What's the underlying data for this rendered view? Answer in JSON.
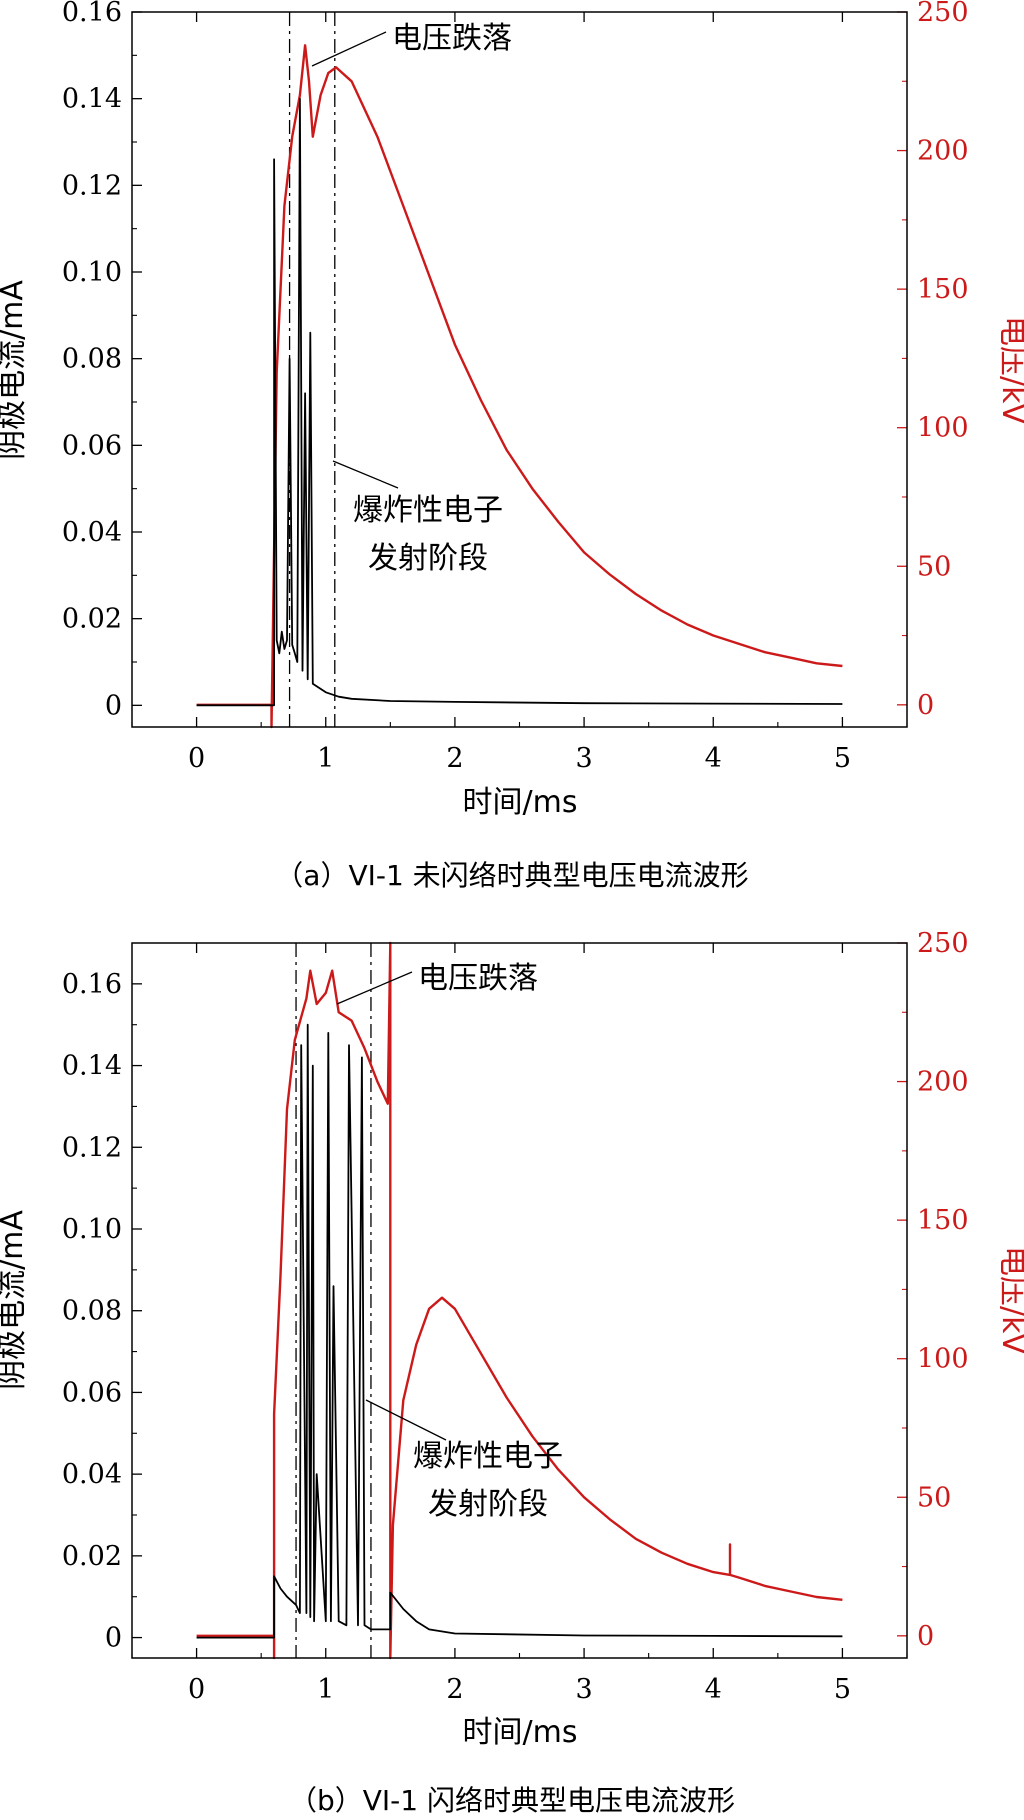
{
  "colors": {
    "current": "#000000",
    "voltage": "#cc1a1a",
    "background": "#ffffff"
  },
  "chart_data": [
    {
      "type": "line",
      "caption": "（a）VI-1 未闪络时典型电压电流波形",
      "xlabel": "时间/ms",
      "ylabel_left": "阴极电流/mA",
      "ylabel_right": "电压/kV",
      "xlim": [
        -0.5,
        5.5
      ],
      "ylim_left": [
        -0.005,
        0.16
      ],
      "ylim_right": [
        -8,
        250
      ],
      "xticks": [
        0,
        1,
        2,
        3,
        4,
        5
      ],
      "yticks_left": [
        "0",
        "0.02",
        "0.04",
        "0.06",
        "0.08",
        "0.10",
        "0.12",
        "0.14",
        "0.16"
      ],
      "yticks_right": [
        "0",
        "50",
        "100",
        "150",
        "200",
        "250"
      ],
      "annotations": [
        {
          "text": "电压跌落"
        },
        {
          "lines": [
            "爆炸性电子",
            "发射阶段"
          ]
        }
      ],
      "markers_x": [
        0.72,
        1.07
      ],
      "series": [
        {
          "axis": "right",
          "color": "#cc1a1a",
          "x": [
            0,
            0.58,
            0.58,
            0.62,
            0.68,
            0.74,
            0.8,
            0.84,
            0.87,
            0.9,
            0.96,
            1.02,
            1.08,
            1.2,
            1.4,
            1.6,
            1.8,
            2.0,
            2.2,
            2.4,
            2.6,
            2.8,
            3.0,
            3.2,
            3.4,
            3.6,
            3.8,
            4.0,
            4.2,
            4.4,
            4.6,
            4.8,
            5.0
          ],
          "y": [
            0,
            0,
            -8,
            120,
            180,
            205,
            220,
            238,
            225,
            205,
            220,
            228,
            230,
            225,
            205,
            180,
            155,
            130,
            110,
            92,
            78,
            66,
            55,
            47,
            40,
            34,
            29,
            25,
            22,
            19,
            17,
            15,
            14
          ]
        },
        {
          "axis": "left",
          "color": "#000000",
          "x": [
            0,
            0.6,
            0.6,
            0.62,
            0.64,
            0.66,
            0.68,
            0.7,
            0.72,
            0.74,
            0.76,
            0.78,
            0.8,
            0.82,
            0.84,
            0.86,
            0.88,
            0.9,
            0.95,
            1.0,
            1.1,
            1.2,
            1.5,
            2.0,
            3.0,
            4.0,
            5.0
          ],
          "y": [
            0,
            0,
            0.126,
            0.015,
            0.012,
            0.017,
            0.013,
            0.015,
            0.08,
            0.014,
            0.012,
            0.01,
            0.14,
            0.008,
            0.072,
            0.006,
            0.086,
            0.005,
            0.004,
            0.003,
            0.002,
            0.0015,
            0.001,
            0.0008,
            0.0005,
            0.0004,
            0.0003
          ]
        }
      ]
    },
    {
      "type": "line",
      "caption": "（b）VI-1 闪络时典型电压电流波形",
      "xlabel": "时间/ms",
      "ylabel_left": "阴极电流/mA",
      "ylabel_right": "电压/kV",
      "xlim": [
        -0.5,
        5.5
      ],
      "ylim_left": [
        -0.005,
        0.17
      ],
      "ylim_right": [
        -8,
        250
      ],
      "xticks": [
        0,
        1,
        2,
        3,
        4,
        5
      ],
      "yticks_left": [
        "0",
        "0.02",
        "0.04",
        "0.06",
        "0.08",
        "0.10",
        "0.12",
        "0.14",
        "0.16"
      ],
      "yticks_right": [
        "0",
        "50",
        "100",
        "150",
        "200",
        "250"
      ],
      "annotations": [
        {
          "text": "电压跌落"
        },
        {
          "lines": [
            "爆炸性电子",
            "发射阶段"
          ]
        }
      ],
      "markers_x": [
        0.77,
        1.35
      ],
      "series": [
        {
          "axis": "right",
          "color": "#cc1a1a",
          "x": [
            0,
            0.6,
            0.6,
            0.6,
            0.65,
            0.7,
            0.76,
            0.85,
            0.88,
            0.93,
            1.0,
            1.05,
            1.1,
            1.2,
            1.3,
            1.4,
            1.48,
            1.5,
            1.5,
            1.52,
            1.6,
            1.7,
            1.8,
            1.9,
            2.0,
            2.2,
            2.4,
            2.6,
            2.8,
            3.0,
            3.2,
            3.4,
            3.6,
            3.8,
            4.0,
            4.13,
            4.13,
            4.13,
            4.2,
            4.4,
            4.6,
            4.8,
            5.0
          ],
          "y": [
            0,
            0,
            -8,
            80,
            130,
            190,
            215,
            230,
            240,
            228,
            232,
            240,
            225,
            222,
            212,
            200,
            192,
            250,
            -8,
            40,
            85,
            105,
            118,
            122,
            118,
            102,
            86,
            72,
            60,
            50,
            42,
            35,
            30,
            26,
            23,
            22,
            33,
            22,
            21,
            18,
            16,
            14,
            13
          ]
        },
        {
          "axis": "left",
          "color": "#000000",
          "x": [
            0,
            0.6,
            0.6,
            0.65,
            0.7,
            0.77,
            0.8,
            0.81,
            0.85,
            0.86,
            0.88,
            0.9,
            0.91,
            0.93,
            1.0,
            1.02,
            1.04,
            1.06,
            1.1,
            1.16,
            1.18,
            1.25,
            1.28,
            1.3,
            1.35,
            1.5,
            1.5,
            1.6,
            1.7,
            1.8,
            2.0,
            3.0,
            4.0,
            5.0
          ],
          "y": [
            0,
            0,
            0.015,
            0.012,
            0.01,
            0.008,
            0.006,
            0.145,
            0.006,
            0.15,
            0.005,
            0.14,
            0.004,
            0.04,
            0.004,
            0.148,
            0.004,
            0.086,
            0.004,
            0.003,
            0.145,
            0.003,
            0.142,
            0.003,
            0.002,
            0.002,
            0.011,
            0.007,
            0.004,
            0.002,
            0.001,
            0.0005,
            0.0004,
            0.0003
          ]
        }
      ]
    }
  ]
}
